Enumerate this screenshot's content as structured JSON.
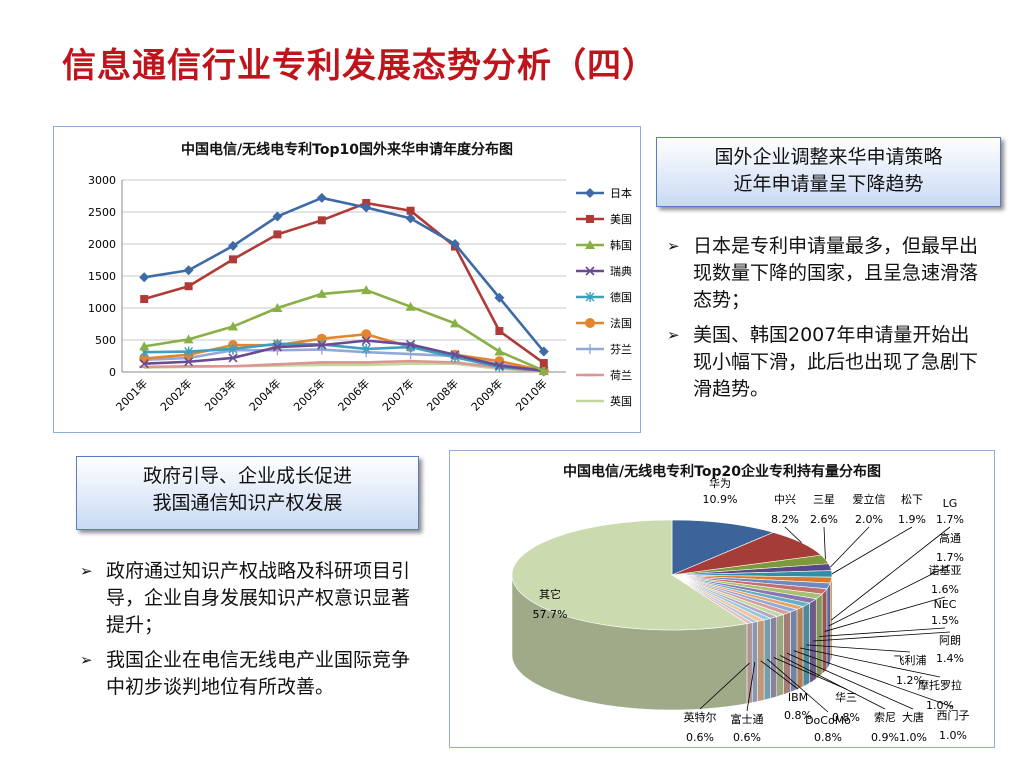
{
  "slide_title": "信息通信行业专利发展态势分析（四）",
  "line_chart": {
    "title": "中国电信/无线电专利Top10国外来华申请年度分布图"
  },
  "pie_chart": {
    "title": "中国电信/无线电专利Top20企业专利持有量分布图"
  },
  "callout_right": {
    "line1": "国外企业调整来华申请策略",
    "line2": "近年申请量呈下降趋势"
  },
  "bullets_right": [
    "日本是专利申请量最多，但最早出现数量下降的国家，且呈急速滑落态势；",
    "美国、韩国2007年申请量开始出现小幅下滑，此后也出现了急剧下滑趋势。"
  ],
  "callout_left": {
    "line1": "政府引导、企业成长促进",
    "line2": "我国通信知识产权发展"
  },
  "bullets_left": [
    "政府通过知识产权战略及科研项目引导，企业自身发展知识产权意识显著提升；",
    "我国企业在电信无线电产业国际竞争中初步谈判地位有所改善。"
  ],
  "bullet_glyph": "➢",
  "chart_data": [
    {
      "type": "line",
      "title": "中国电信/无线电专利Top10国外来华申请年度分布图",
      "x": [
        "2001年",
        "2002年",
        "2003年",
        "2004年",
        "2005年",
        "2006年",
        "2007年",
        "2008年",
        "2009年",
        "2010年"
      ],
      "ylim": [
        0,
        3000
      ],
      "yticks": [
        0,
        500,
        1000,
        1500,
        2000,
        2500,
        3000
      ],
      "grid": true,
      "legend_position": "right",
      "series": [
        {
          "name": "日本",
          "color": "#3e6aa8",
          "marker": "diamond",
          "values": [
            1480,
            1590,
            1970,
            2430,
            2720,
            2570,
            2400,
            2000,
            1160,
            320
          ]
        },
        {
          "name": "美国",
          "color": "#b03a37",
          "marker": "square",
          "values": [
            1140,
            1340,
            1760,
            2150,
            2370,
            2640,
            2520,
            1960,
            640,
            140
          ]
        },
        {
          "name": "韩国",
          "color": "#88b047",
          "marker": "triangle",
          "values": [
            400,
            510,
            710,
            1000,
            1220,
            1280,
            1020,
            760,
            320,
            20
          ]
        },
        {
          "name": "瑞典",
          "color": "#6a4a94",
          "marker": "x",
          "values": [
            130,
            160,
            220,
            390,
            420,
            490,
            430,
            270,
            100,
            20
          ]
        },
        {
          "name": "德国",
          "color": "#3aa0bd",
          "marker": "star",
          "values": [
            310,
            320,
            360,
            440,
            430,
            360,
            390,
            230,
            80,
            20
          ]
        },
        {
          "name": "法国",
          "color": "#e5842e",
          "marker": "circle",
          "values": [
            210,
            270,
            420,
            420,
            520,
            590,
            390,
            270,
            170,
            20
          ]
        },
        {
          "name": "芬兰",
          "color": "#93a7d8",
          "marker": "plus",
          "values": [
            190,
            220,
            340,
            340,
            350,
            310,
            280,
            250,
            120,
            10
          ]
        },
        {
          "name": "荷兰",
          "color": "#d99694",
          "marker": "dash",
          "values": [
            80,
            90,
            90,
            120,
            150,
            150,
            170,
            150,
            70,
            10
          ]
        },
        {
          "name": "英国",
          "color": "#c3d69b",
          "marker": "none",
          "values": [
            70,
            80,
            90,
            100,
            110,
            110,
            130,
            130,
            50,
            10
          ]
        }
      ]
    },
    {
      "type": "pie",
      "title": "中国电信/无线电专利Top20企业专利持有量分布图",
      "slices": [
        {
          "label": "华为",
          "value": 10.9,
          "text": "10.9%",
          "color": "#3c649a"
        },
        {
          "label": "中兴",
          "value": 8.2,
          "text": "8.2%",
          "color": "#a53c37"
        },
        {
          "label": "三星",
          "value": 2.6,
          "text": "2.6%",
          "color": "#7c9a3a"
        },
        {
          "label": "爱立信",
          "value": 2.0,
          "text": "2.0%",
          "color": "#5b4687"
        },
        {
          "label": "松下",
          "value": 1.9,
          "text": "1.9%",
          "color": "#2f8fa9"
        },
        {
          "label": "LG",
          "value": 1.7,
          "text": "1.7%",
          "color": "#d97a2a"
        },
        {
          "label": "高通",
          "value": 1.7,
          "text": "1.7%",
          "color": "#6d88c2"
        },
        {
          "label": "诺基亚",
          "value": 1.6,
          "text": "1.6%",
          "color": "#c2706d"
        },
        {
          "label": "NEC",
          "value": 1.5,
          "text": "1.5%",
          "color": "#a8c075"
        },
        {
          "label": "阿朗",
          "value": 1.4,
          "text": "1.4%",
          "color": "#8a75ad"
        },
        {
          "label": "飞利浦",
          "value": 1.2,
          "text": "1.2%",
          "color": "#62afc6"
        },
        {
          "label": "摩托罗拉",
          "value": 1.0,
          "text": "1.0%",
          "color": "#eaa26b"
        },
        {
          "label": "西门子",
          "value": 1.0,
          "text": "1.0%",
          "color": "#91a9d4"
        },
        {
          "label": "大唐",
          "value": 1.0,
          "text": "1.0%",
          "color": "#d49e9c"
        },
        {
          "label": "索尼",
          "value": 0.9,
          "text": "0.9%",
          "color": "#c4d79f"
        },
        {
          "label": "华三",
          "value": 0.8,
          "text": "0.8%",
          "color": "#b3a5c9"
        },
        {
          "label": "DoCoMo",
          "value": 0.8,
          "text": "0.8%",
          "color": "#93cadb"
        },
        {
          "label": "IBM",
          "value": 0.8,
          "text": "0.8%",
          "color": "#f3c39a"
        },
        {
          "label": "富士通",
          "value": 0.6,
          "text": "0.6%",
          "color": "#b0c1e2"
        },
        {
          "label": "英特尔",
          "value": 0.6,
          "text": "0.6%",
          "color": "#e3bfbe"
        },
        {
          "label": "其它",
          "value": 57.7,
          "text": "57.7%",
          "color": "#ccdab0"
        }
      ]
    }
  ]
}
